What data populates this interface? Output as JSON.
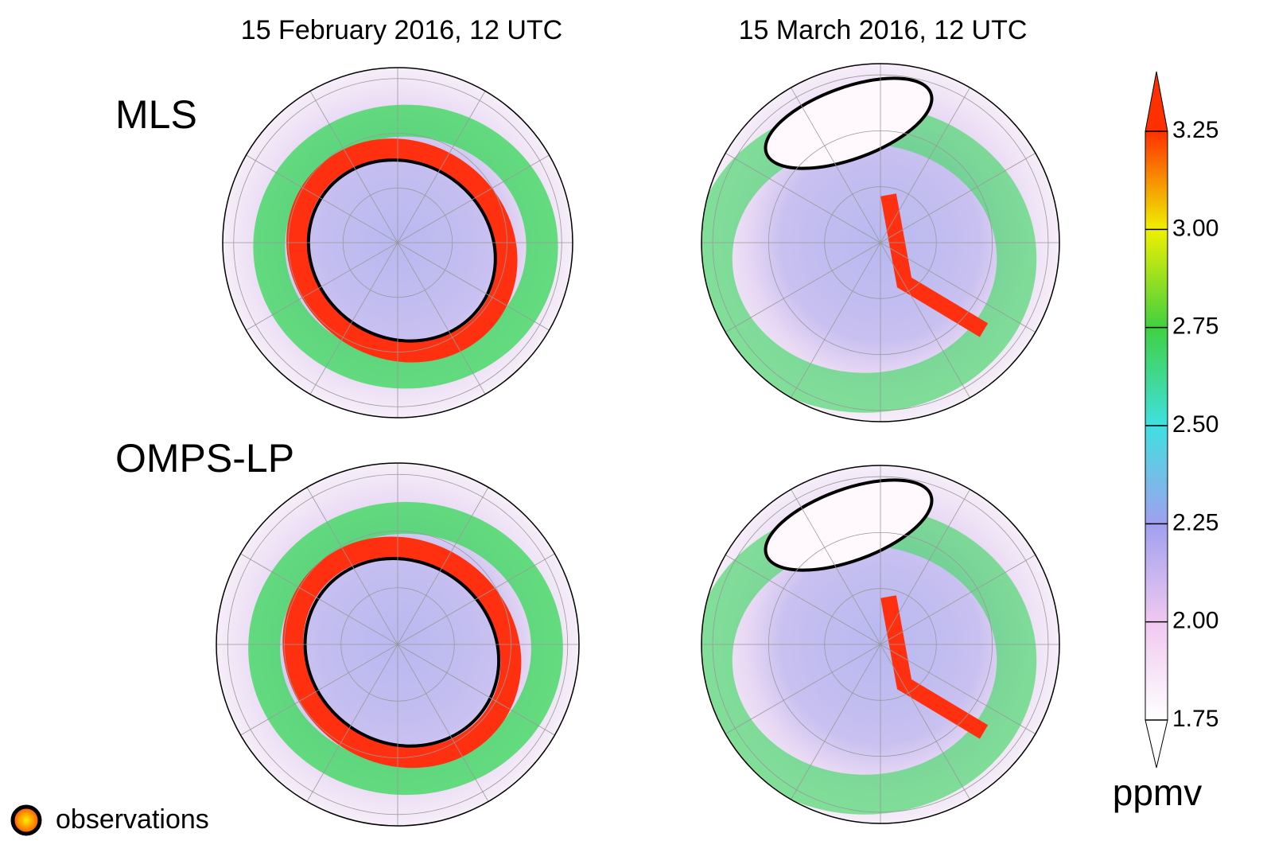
{
  "columns": [
    "15 February 2016, 12 UTC",
    "15 March 2016, 12 UTC"
  ],
  "rows": [
    "MLS",
    "OMPS-LP"
  ],
  "colorbar": {
    "range": [
      1.75,
      3.25
    ],
    "ticks": [
      1.75,
      {
        "value": 2,
        "label": "2.00"
      },
      2.25,
      {
        "value": 2.5,
        "label": "2.50"
      },
      2.75,
      {
        "value": 3,
        "label": "3.00"
      },
      3.25
    ],
    "colors": [
      "#ffffff",
      "#f0c8f0",
      "#a0a0f0",
      "#40e0e0",
      "#40d040",
      "#f0f000",
      "#ff3000"
    ],
    "unit": "ppmv"
  },
  "legend": "observations"
}
